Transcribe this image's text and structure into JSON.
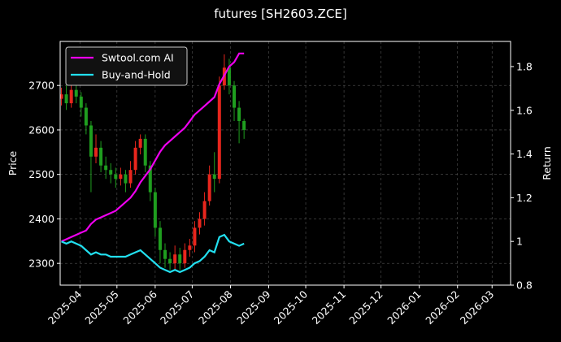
{
  "chart_data": {
    "type": "candlestick",
    "title": "futures [SH2603.ZCE]",
    "y_label": "Price",
    "y2_label": "Return",
    "x": [
      "2025-03-17",
      "2025-03-21",
      "2025-03-25",
      "2025-03-29",
      "2025-04-02",
      "2025-04-06",
      "2025-04-10",
      "2025-04-14",
      "2025-04-18",
      "2025-04-22",
      "2025-04-26",
      "2025-04-30",
      "2025-05-04",
      "2025-05-08",
      "2025-05-12",
      "2025-05-16",
      "2025-05-20",
      "2025-05-24",
      "2025-05-28",
      "2025-06-01",
      "2025-06-05",
      "2025-06-09",
      "2025-06-13",
      "2025-06-17",
      "2025-06-21",
      "2025-06-25",
      "2025-06-29",
      "2025-07-03",
      "2025-07-07",
      "2025-07-11",
      "2025-07-15",
      "2025-07-19",
      "2025-07-23",
      "2025-07-27",
      "2025-07-31",
      "2025-08-04",
      "2025-08-08",
      "2025-08-12"
    ],
    "open": [
      2670,
      2680,
      2660,
      2690,
      2675,
      2650,
      2610,
      2540,
      2560,
      2520,
      2510,
      2500,
      2490,
      2500,
      2480,
      2510,
      2560,
      2580,
      2520,
      2460,
      2380,
      2330,
      2310,
      2300,
      2320,
      2300,
      2330,
      2340,
      2380,
      2400,
      2440,
      2500,
      2490,
      2700,
      2740,
      2700,
      2650,
      2620
    ],
    "high": [
      2695,
      2700,
      2705,
      2700,
      2685,
      2660,
      2620,
      2590,
      2575,
      2540,
      2525,
      2515,
      2515,
      2510,
      2530,
      2575,
      2590,
      2590,
      2530,
      2470,
      2395,
      2345,
      2325,
      2340,
      2335,
      2345,
      2355,
      2395,
      2415,
      2460,
      2520,
      2550,
      2720,
      2770,
      2760,
      2710,
      2665,
      2625
    ],
    "low": [
      2655,
      2645,
      2650,
      2660,
      2630,
      2590,
      2460,
      2525,
      2505,
      2490,
      2480,
      2470,
      2475,
      2460,
      2470,
      2500,
      2545,
      2505,
      2440,
      2360,
      2300,
      2290,
      2285,
      2285,
      2285,
      2290,
      2315,
      2325,
      2365,
      2385,
      2430,
      2460,
      2480,
      2690,
      2680,
      2620,
      2570,
      2580
    ],
    "close": [
      2680,
      2660,
      2690,
      2675,
      2650,
      2610,
      2540,
      2560,
      2520,
      2510,
      2500,
      2490,
      2500,
      2480,
      2510,
      2560,
      2580,
      2520,
      2460,
      2380,
      2330,
      2310,
      2300,
      2320,
      2300,
      2330,
      2340,
      2380,
      2400,
      2440,
      2500,
      2490,
      2700,
      2740,
      2700,
      2650,
      2620,
      2600
    ],
    "up_color": "#e8261d",
    "down_color": "#1f9e1f",
    "series": [
      {
        "name": "Swtool.com AI",
        "color": "#ee00ee",
        "axis": "y2",
        "values": [
          1.0,
          1.01,
          1.02,
          1.03,
          1.04,
          1.05,
          1.08,
          1.1,
          1.11,
          1.12,
          1.13,
          1.14,
          1.16,
          1.18,
          1.2,
          1.23,
          1.27,
          1.3,
          1.33,
          1.37,
          1.41,
          1.44,
          1.46,
          1.48,
          1.5,
          1.52,
          1.55,
          1.58,
          1.6,
          1.62,
          1.64,
          1.66,
          1.72,
          1.76,
          1.8,
          1.82,
          1.86,
          1.86
        ]
      },
      {
        "name": "Buy-and-Hold",
        "color": "#22e0f0",
        "axis": "y2",
        "values": [
          1.0,
          0.99,
          1.0,
          0.99,
          0.98,
          0.96,
          0.94,
          0.95,
          0.94,
          0.94,
          0.93,
          0.93,
          0.93,
          0.93,
          0.94,
          0.95,
          0.96,
          0.94,
          0.92,
          0.9,
          0.88,
          0.87,
          0.86,
          0.87,
          0.86,
          0.87,
          0.88,
          0.9,
          0.91,
          0.93,
          0.96,
          0.95,
          1.02,
          1.03,
          1.0,
          0.99,
          0.98,
          0.99
        ]
      }
    ],
    "xlim": [
      "2025-03-16",
      "2026-03-16"
    ],
    "xticks": [
      {
        "value": "2025-04-01",
        "label": "2025-04"
      },
      {
        "value": "2025-05-01",
        "label": "2025-05"
      },
      {
        "value": "2025-06-01",
        "label": "2025-06"
      },
      {
        "value": "2025-07-01",
        "label": "2025-07"
      },
      {
        "value": "2025-08-01",
        "label": "2025-08"
      },
      {
        "value": "2025-09-01",
        "label": "2025-09"
      },
      {
        "value": "2025-10-01",
        "label": "2025-10"
      },
      {
        "value": "2025-11-01",
        "label": "2025-11"
      },
      {
        "value": "2025-12-01",
        "label": "2025-12"
      },
      {
        "value": "2026-01-01",
        "label": "2026-01"
      },
      {
        "value": "2026-02-01",
        "label": "2026-02"
      },
      {
        "value": "2026-03-01",
        "label": "2026-03"
      }
    ],
    "ylim": [
      2251,
      2799
    ],
    "yticks": [
      2300,
      2400,
      2500,
      2600,
      2700
    ],
    "y2lim": [
      0.8,
      1.915
    ],
    "y2ticks": [
      0.8,
      1.0,
      1.2,
      1.4,
      1.6,
      1.8
    ],
    "grid": true,
    "legend": "upper left"
  }
}
